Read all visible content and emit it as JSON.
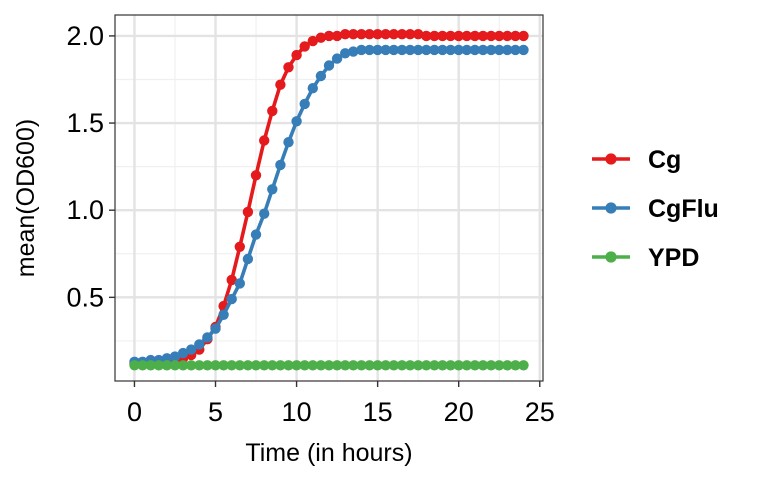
{
  "chart_data": {
    "type": "line",
    "xlabel": "Time (in hours)",
    "ylabel": "mean(OD600)",
    "xlim": [
      -1.2,
      25.2
    ],
    "ylim": [
      0.02,
      2.12
    ],
    "x_ticks": [
      0,
      5,
      10,
      15,
      20,
      25
    ],
    "x_tick_labels": [
      "0",
      "5",
      "10",
      "15",
      "20",
      "25"
    ],
    "y_ticks": [
      0.5,
      1.0,
      1.5,
      2.0
    ],
    "y_tick_labels": [
      "0.5",
      "1.0",
      "1.5",
      "2.0"
    ],
    "grid": true,
    "legend_position": "right",
    "x": [
      0,
      0.5,
      1,
      1.5,
      2,
      2.5,
      3,
      3.5,
      4,
      4.5,
      5,
      5.5,
      6,
      6.5,
      7,
      7.5,
      8,
      8.5,
      9,
      9.5,
      10,
      10.5,
      11,
      11.5,
      12,
      12.5,
      13,
      13.5,
      14,
      14.5,
      15,
      15.5,
      16,
      16.5,
      17,
      17.5,
      18,
      18.5,
      19,
      19.5,
      20,
      20.5,
      21,
      21.5,
      22,
      22.5,
      23,
      23.5,
      24
    ],
    "series": [
      {
        "name": "Cg",
        "color": "#e41a1c",
        "values": [
          0.12,
          0.12,
          0.12,
          0.12,
          0.13,
          0.13,
          0.15,
          0.17,
          0.2,
          0.26,
          0.33,
          0.45,
          0.6,
          0.79,
          0.99,
          1.2,
          1.4,
          1.57,
          1.72,
          1.82,
          1.89,
          1.94,
          1.97,
          1.99,
          2.0,
          2.0,
          2.01,
          2.01,
          2.01,
          2.01,
          2.01,
          2.01,
          2.01,
          2.01,
          2.01,
          2.01,
          2.0,
          2.0,
          2.0,
          2.0,
          2.0,
          2.0,
          2.0,
          2.0,
          2.0,
          2.0,
          2.0,
          2.0,
          2.0
        ]
      },
      {
        "name": "CgFlu",
        "color": "#377eb8",
        "values": [
          0.13,
          0.13,
          0.14,
          0.14,
          0.15,
          0.16,
          0.18,
          0.2,
          0.23,
          0.27,
          0.32,
          0.4,
          0.49,
          0.58,
          0.72,
          0.86,
          0.98,
          1.12,
          1.26,
          1.39,
          1.51,
          1.61,
          1.7,
          1.77,
          1.83,
          1.87,
          1.9,
          1.91,
          1.92,
          1.92,
          1.92,
          1.92,
          1.92,
          1.92,
          1.92,
          1.92,
          1.92,
          1.92,
          1.92,
          1.92,
          1.92,
          1.92,
          1.92,
          1.92,
          1.92,
          1.92,
          1.92,
          1.92,
          1.92
        ]
      },
      {
        "name": "YPD",
        "color": "#4daf4a",
        "values": [
          0.11,
          0.11,
          0.11,
          0.11,
          0.11,
          0.11,
          0.11,
          0.11,
          0.11,
          0.11,
          0.11,
          0.11,
          0.11,
          0.11,
          0.11,
          0.11,
          0.11,
          0.11,
          0.11,
          0.11,
          0.11,
          0.11,
          0.11,
          0.11,
          0.11,
          0.11,
          0.11,
          0.11,
          0.11,
          0.11,
          0.11,
          0.11,
          0.11,
          0.11,
          0.11,
          0.11,
          0.11,
          0.11,
          0.11,
          0.11,
          0.11,
          0.11,
          0.11,
          0.11,
          0.11,
          0.11,
          0.11,
          0.11,
          0.11
        ]
      }
    ]
  }
}
